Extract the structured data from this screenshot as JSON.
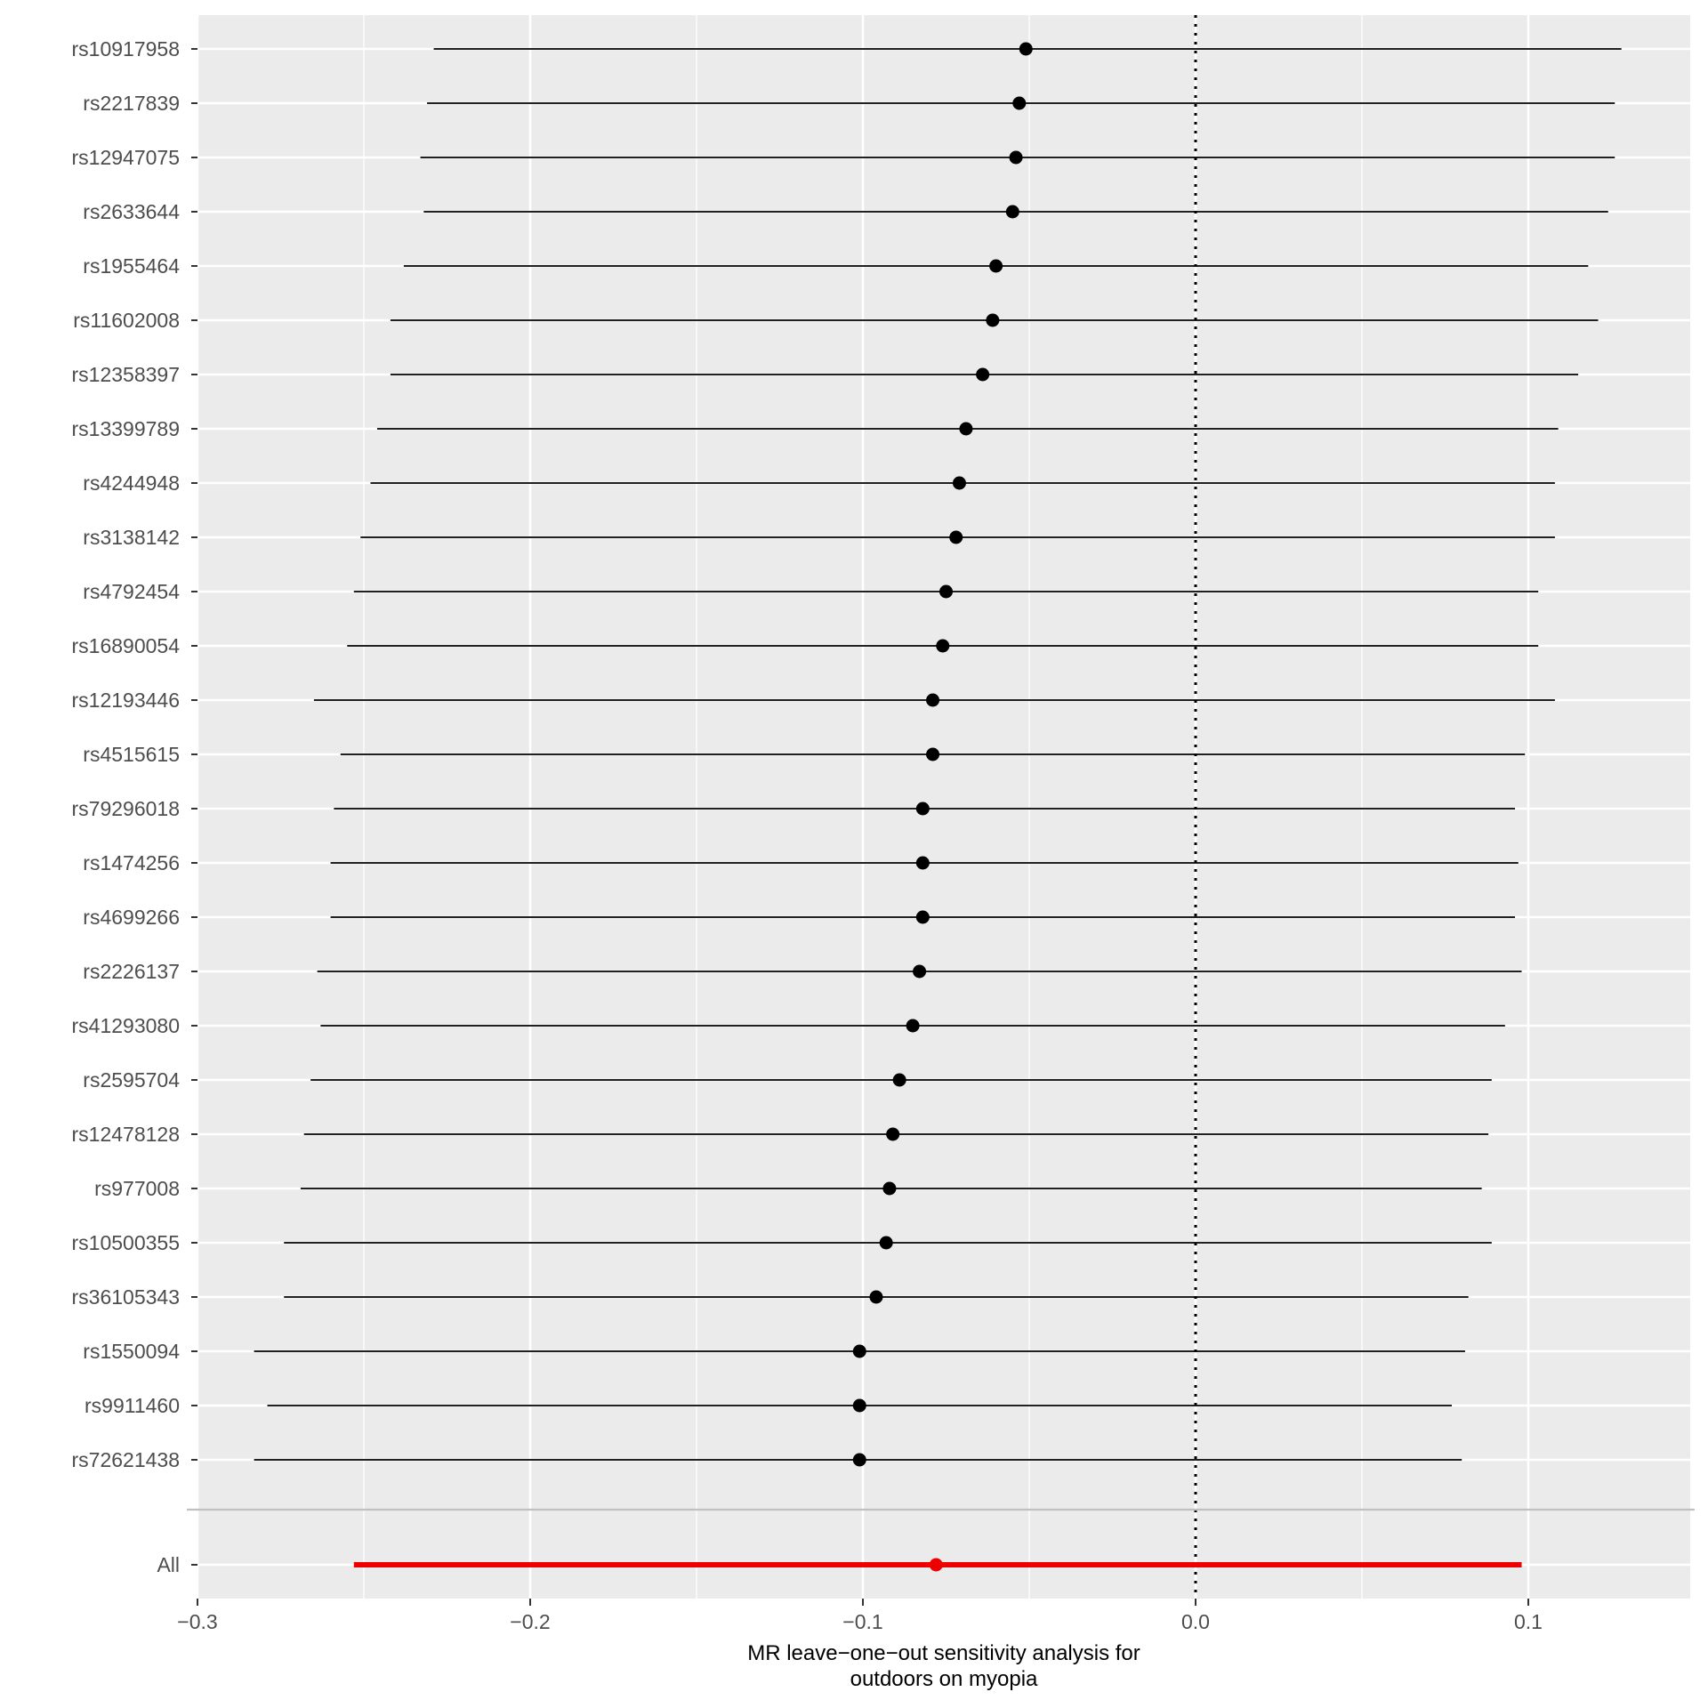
{
  "chart_data": {
    "type": "forest",
    "xlabel_lines": [
      "MR leave−one−out sensitivity analysis for",
      "outdoors on myopia"
    ],
    "ylabel": "",
    "xlim": [
      -0.3,
      0.15
    ],
    "xticks": [
      -0.3,
      -0.2,
      -0.1,
      0.0,
      0.1
    ],
    "xtick_labels": [
      "−0.3",
      "−0.2",
      "−0.1",
      "0.0",
      "0.1"
    ],
    "reference_line": 0.0,
    "grid": true,
    "colors": {
      "panel": "#ebebeb",
      "grid": "#ffffff",
      "point": "#000000",
      "overall": "#ee0000"
    },
    "rows": [
      {
        "label": "rs10917958",
        "b": -0.051,
        "lo": -0.229,
        "hi": 0.128
      },
      {
        "label": "rs2217839",
        "b": -0.053,
        "lo": -0.231,
        "hi": 0.126
      },
      {
        "label": "rs12947075",
        "b": -0.054,
        "lo": -0.233,
        "hi": 0.126
      },
      {
        "label": "rs2633644",
        "b": -0.055,
        "lo": -0.232,
        "hi": 0.124
      },
      {
        "label": "rs1955464",
        "b": -0.06,
        "lo": -0.238,
        "hi": 0.118
      },
      {
        "label": "rs11602008",
        "b": -0.061,
        "lo": -0.242,
        "hi": 0.121
      },
      {
        "label": "rs12358397",
        "b": -0.064,
        "lo": -0.242,
        "hi": 0.115
      },
      {
        "label": "rs13399789",
        "b": -0.069,
        "lo": -0.246,
        "hi": 0.109
      },
      {
        "label": "rs4244948",
        "b": -0.071,
        "lo": -0.248,
        "hi": 0.108
      },
      {
        "label": "rs3138142",
        "b": -0.072,
        "lo": -0.251,
        "hi": 0.108
      },
      {
        "label": "rs4792454",
        "b": -0.075,
        "lo": -0.253,
        "hi": 0.103
      },
      {
        "label": "rs16890054",
        "b": -0.076,
        "lo": -0.255,
        "hi": 0.103
      },
      {
        "label": "rs12193446",
        "b": -0.079,
        "lo": -0.265,
        "hi": 0.108
      },
      {
        "label": "rs4515615",
        "b": -0.079,
        "lo": -0.257,
        "hi": 0.099
      },
      {
        "label": "rs79296018",
        "b": -0.082,
        "lo": -0.259,
        "hi": 0.096
      },
      {
        "label": "rs1474256",
        "b": -0.082,
        "lo": -0.26,
        "hi": 0.097
      },
      {
        "label": "rs4699266",
        "b": -0.082,
        "lo": -0.26,
        "hi": 0.096
      },
      {
        "label": "rs2226137",
        "b": -0.083,
        "lo": -0.264,
        "hi": 0.098
      },
      {
        "label": "rs41293080",
        "b": -0.085,
        "lo": -0.263,
        "hi": 0.093
      },
      {
        "label": "rs2595704",
        "b": -0.089,
        "lo": -0.266,
        "hi": 0.089
      },
      {
        "label": "rs12478128",
        "b": -0.091,
        "lo": -0.268,
        "hi": 0.088
      },
      {
        "label": "rs977008",
        "b": -0.092,
        "lo": -0.269,
        "hi": 0.086
      },
      {
        "label": "rs10500355",
        "b": -0.093,
        "lo": -0.274,
        "hi": 0.089
      },
      {
        "label": "rs36105343",
        "b": -0.096,
        "lo": -0.274,
        "hi": 0.082
      },
      {
        "label": "rs1550094",
        "b": -0.101,
        "lo": -0.283,
        "hi": 0.081
      },
      {
        "label": "rs9911460",
        "b": -0.101,
        "lo": -0.279,
        "hi": 0.077
      },
      {
        "label": "rs72621438",
        "b": -0.101,
        "lo": -0.283,
        "hi": 0.08
      }
    ],
    "overall": {
      "label": "All",
      "b": -0.078,
      "lo": -0.253,
      "hi": 0.098
    }
  }
}
